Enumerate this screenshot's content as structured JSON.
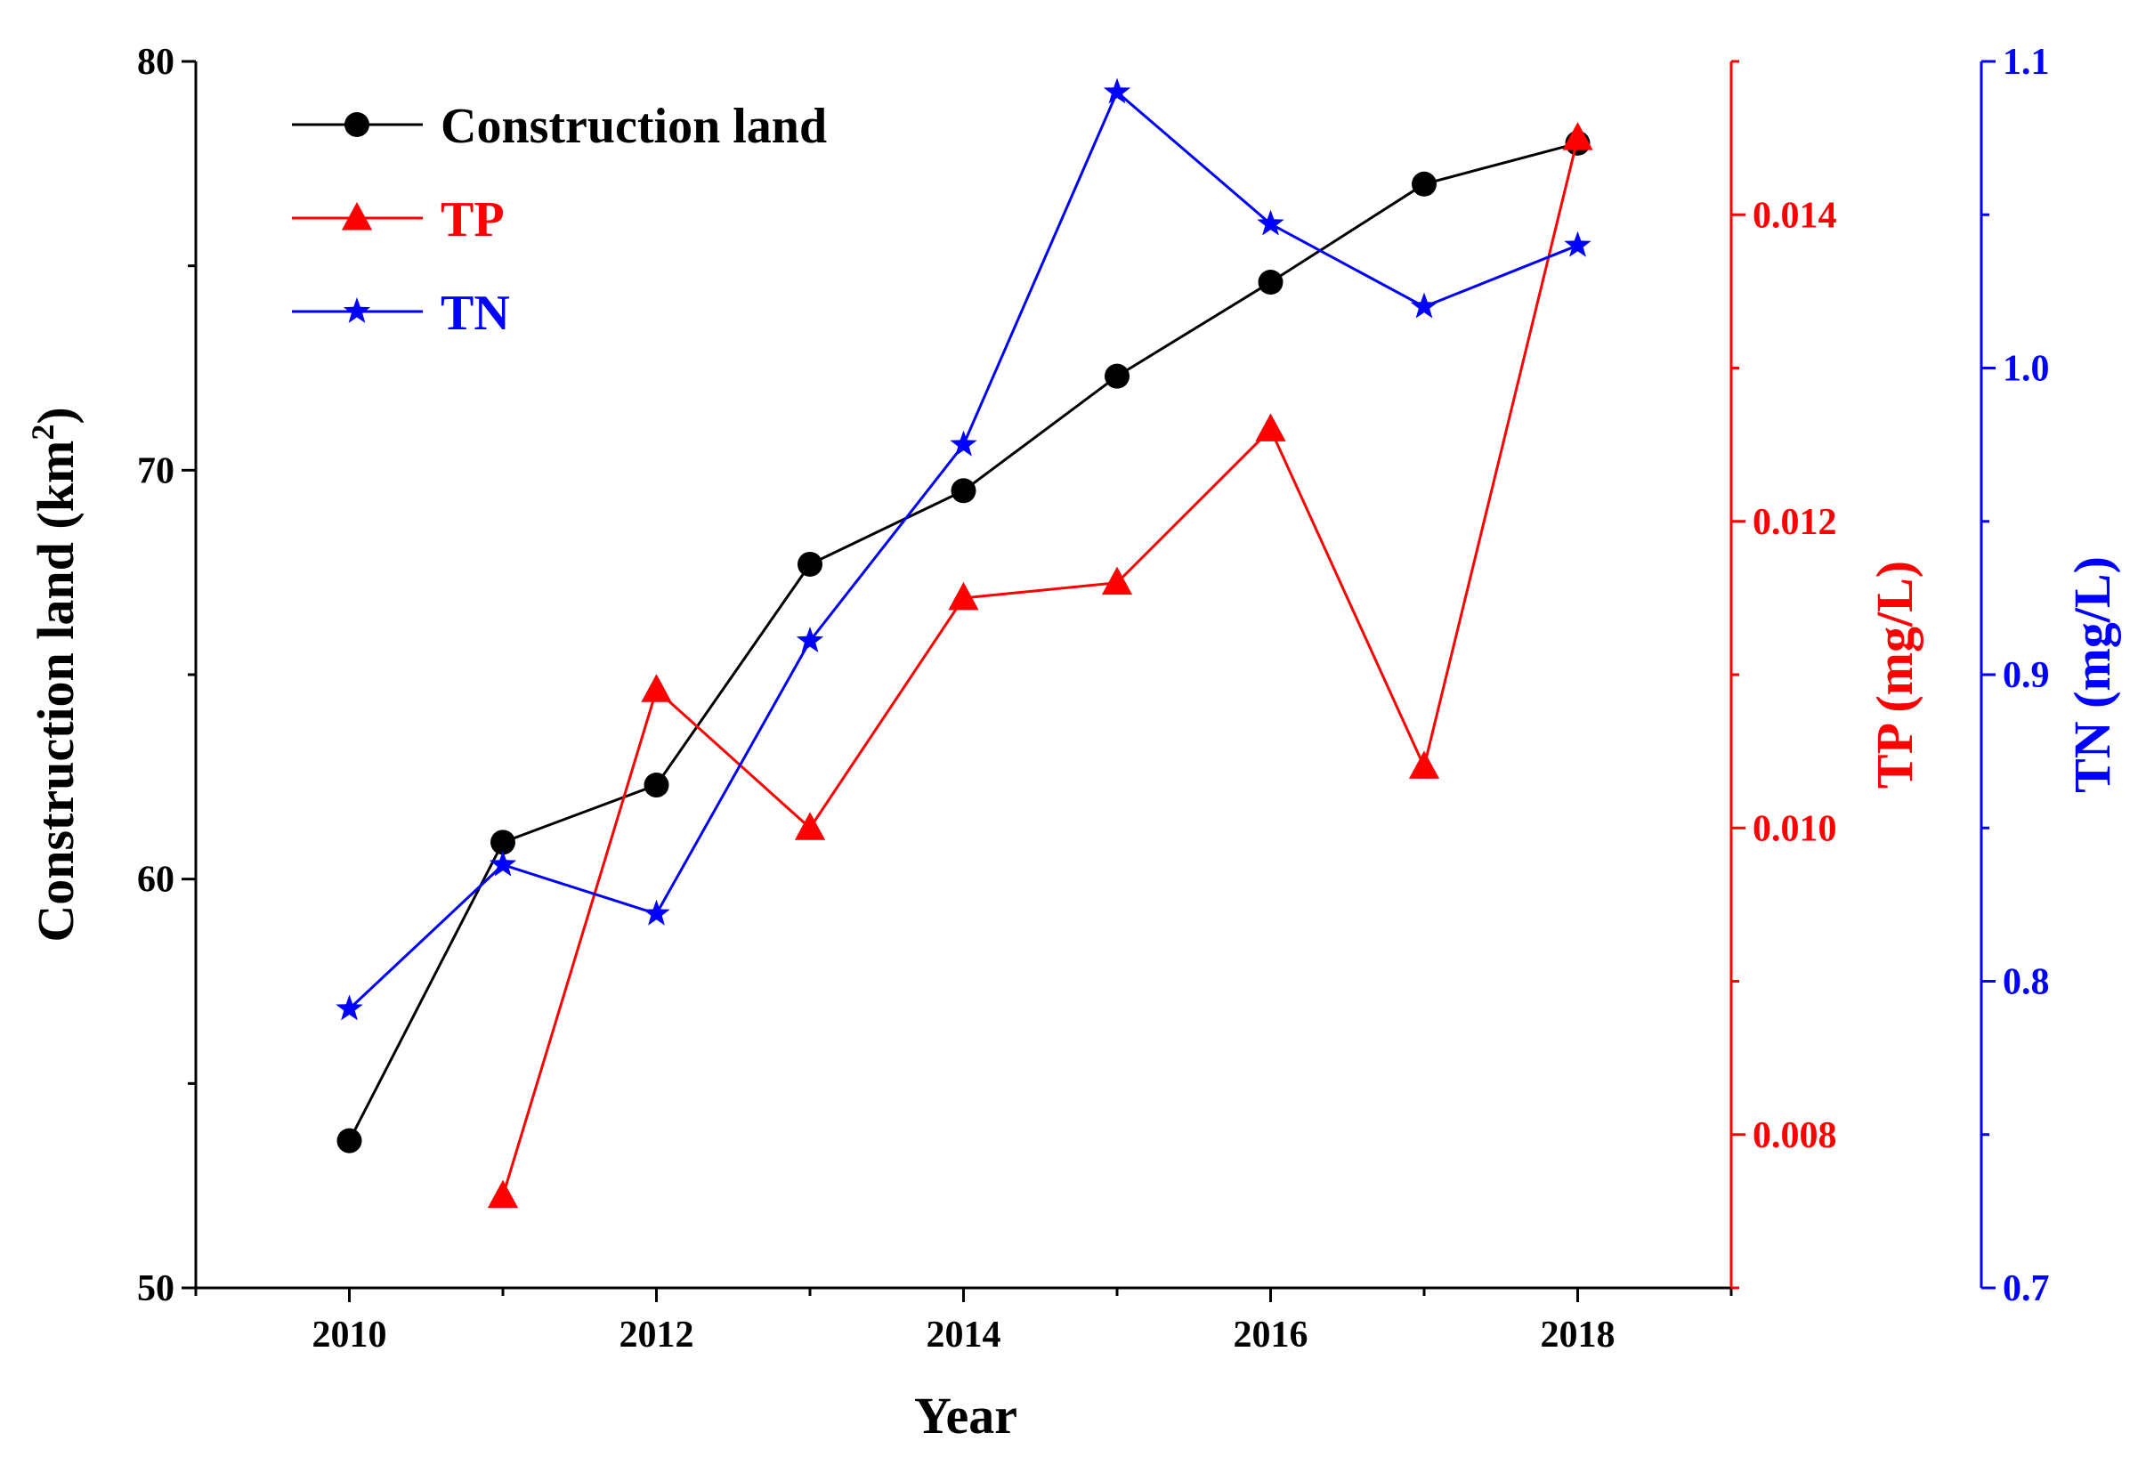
{
  "chart_data": {
    "type": "line",
    "xlabel": "Year",
    "x": [
      2010,
      2011,
      2012,
      2013,
      2014,
      2015,
      2016,
      2017,
      2018
    ],
    "xlim": [
      2009,
      2019
    ],
    "xticks": [
      2010,
      2012,
      2014,
      2016,
      2018
    ],
    "xtick_labels": [
      "2010",
      "2012",
      "2014",
      "2016",
      "2018"
    ],
    "axes": {
      "left": {
        "label": "Construction land (km",
        "label_superscript": "2",
        "label_suffix": ")",
        "ylim": [
          50,
          80
        ],
        "ticks": [
          50,
          60,
          70,
          80
        ],
        "tick_labels": [
          "50",
          "60",
          "70",
          "80"
        ],
        "color": "#000000"
      },
      "right_tp": {
        "label": "TP (mg/L)",
        "ylim": [
          0.007,
          0.015
        ],
        "ticks": [
          0.008,
          0.01,
          0.012,
          0.014
        ],
        "tick_labels": [
          "0.008",
          "0.010",
          "0.012",
          "0.014"
        ],
        "color": "#ff0000"
      },
      "right_tn": {
        "label": "TN (mg/L)",
        "ylim": [
          0.7,
          1.1
        ],
        "ticks": [
          0.7,
          0.8,
          0.9,
          1.0,
          1.1
        ],
        "tick_labels": [
          "0.7",
          "0.8",
          "0.9",
          "1.0",
          "1.1"
        ],
        "color": "#0000ff"
      }
    },
    "series": [
      {
        "name": "Construction land",
        "axis": "left",
        "marker": "circle",
        "color": "#000000",
        "values": [
          53.6,
          60.9,
          62.3,
          67.7,
          69.5,
          72.3,
          74.6,
          77.0,
          78.0
        ]
      },
      {
        "name": "TP",
        "axis": "right_tp",
        "marker": "triangle",
        "color": "#ff0000",
        "values": [
          null,
          0.0076,
          0.0109,
          0.01,
          0.0115,
          0.0116,
          0.0126,
          0.0104,
          0.0145
        ]
      },
      {
        "name": "TN",
        "axis": "right_tn",
        "marker": "star",
        "color": "#0000ff",
        "values": [
          0.791,
          0.838,
          0.822,
          0.911,
          0.975,
          1.09,
          1.047,
          1.02,
          1.04
        ]
      }
    ],
    "legend": {
      "position": "top-left",
      "entries": [
        "Construction land",
        "TP",
        "TN"
      ]
    }
  }
}
